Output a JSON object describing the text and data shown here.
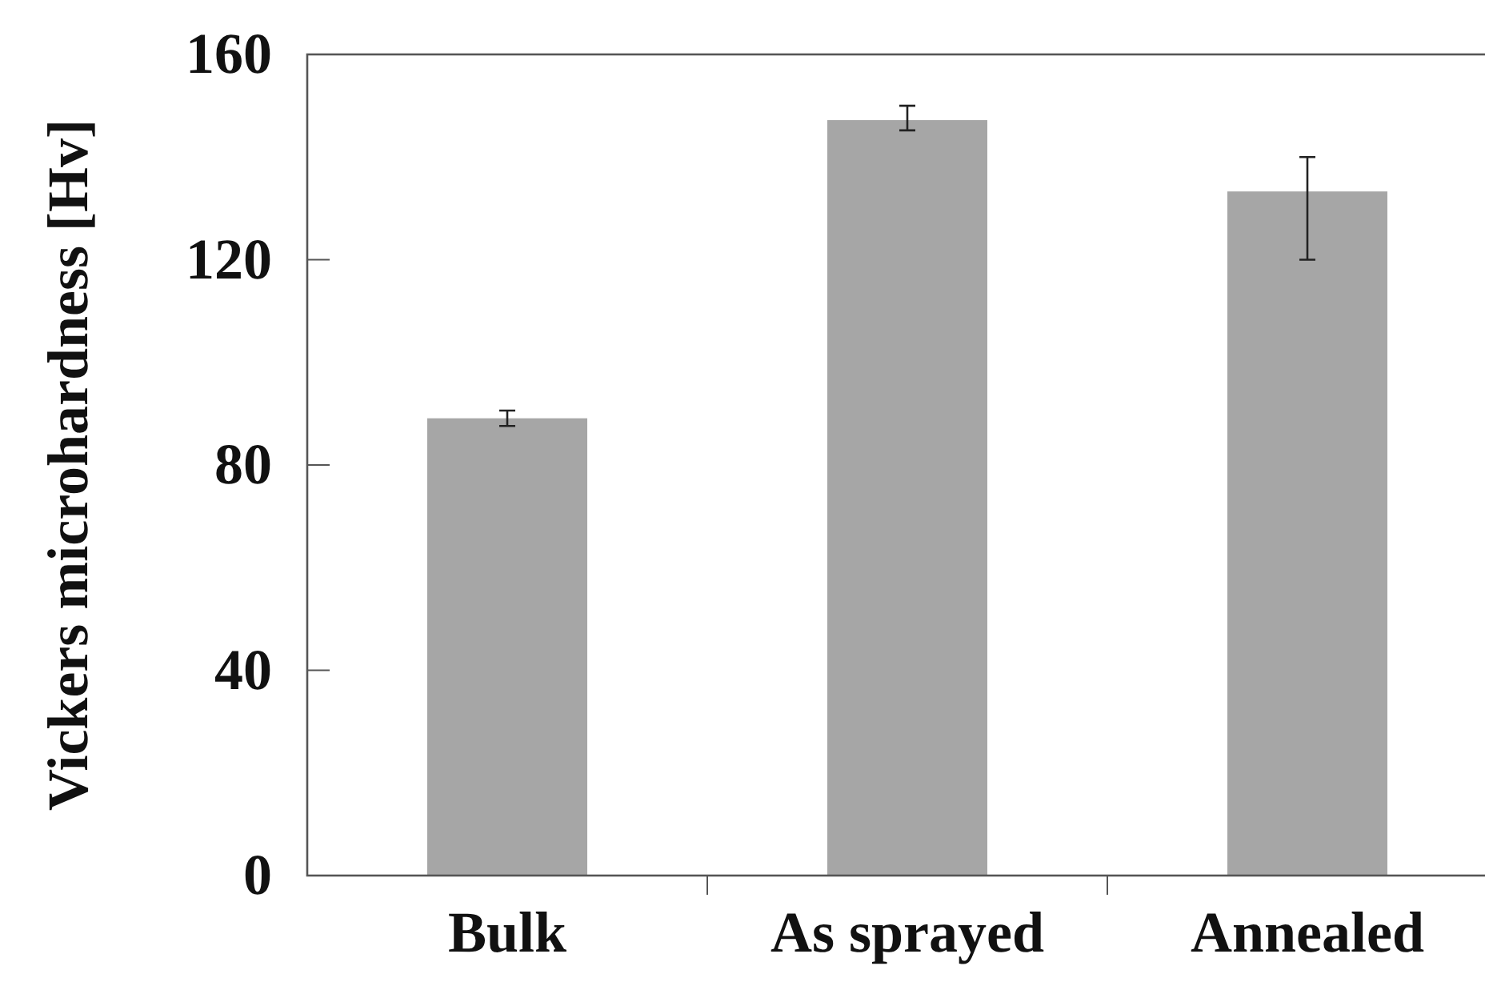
{
  "chart_data": {
    "type": "bar",
    "ylabel": "Vickers microhardness [Hv]",
    "categories": [
      "Bulk",
      "As sprayed",
      "Annealed"
    ],
    "values": [
      89.1,
      147.2,
      133.3
    ],
    "errors": [
      [
        87.6,
        90.6
      ],
      [
        145.2,
        150
      ],
      [
        120,
        140
      ]
    ],
    "color": "#a6a6a6",
    "ylim": [
      0,
      160
    ],
    "yticks": [
      0,
      40,
      80,
      120,
      160
    ],
    "grid": false
  }
}
